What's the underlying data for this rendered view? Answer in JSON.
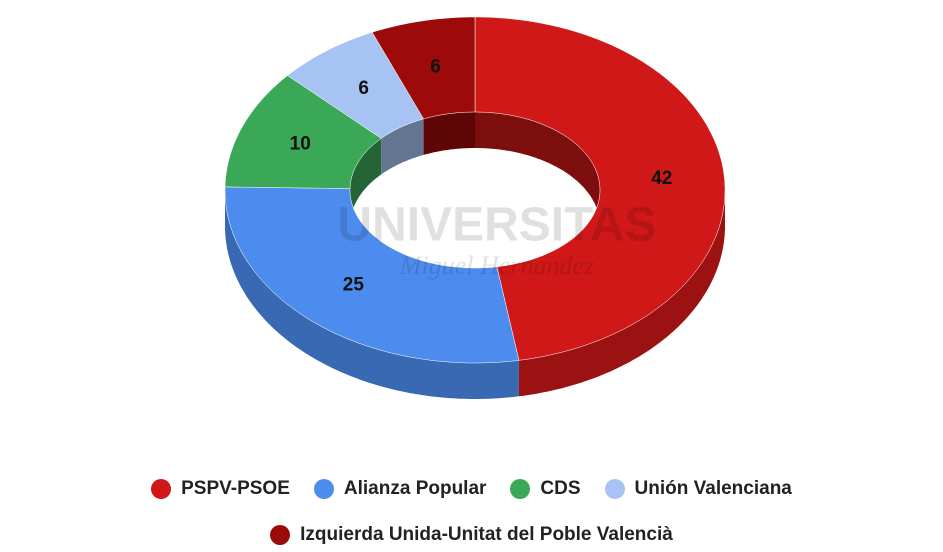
{
  "chart_data": {
    "type": "pie3d-donut",
    "categories": [
      "PSPV-PSOE",
      "Alianza Popular",
      "CDS",
      "Unión Valenciana",
      "Izquierda Unida-Unitat del Poble Valencià"
    ],
    "values": [
      42,
      25,
      10,
      6,
      6
    ],
    "colors": [
      "#d01818",
      "#4d8cef",
      "#3aa857",
      "#a6c3f4",
      "#9c0a0a"
    ],
    "watermark": [
      "UNIVERSITAS",
      "Miguel Hernandez"
    ]
  }
}
